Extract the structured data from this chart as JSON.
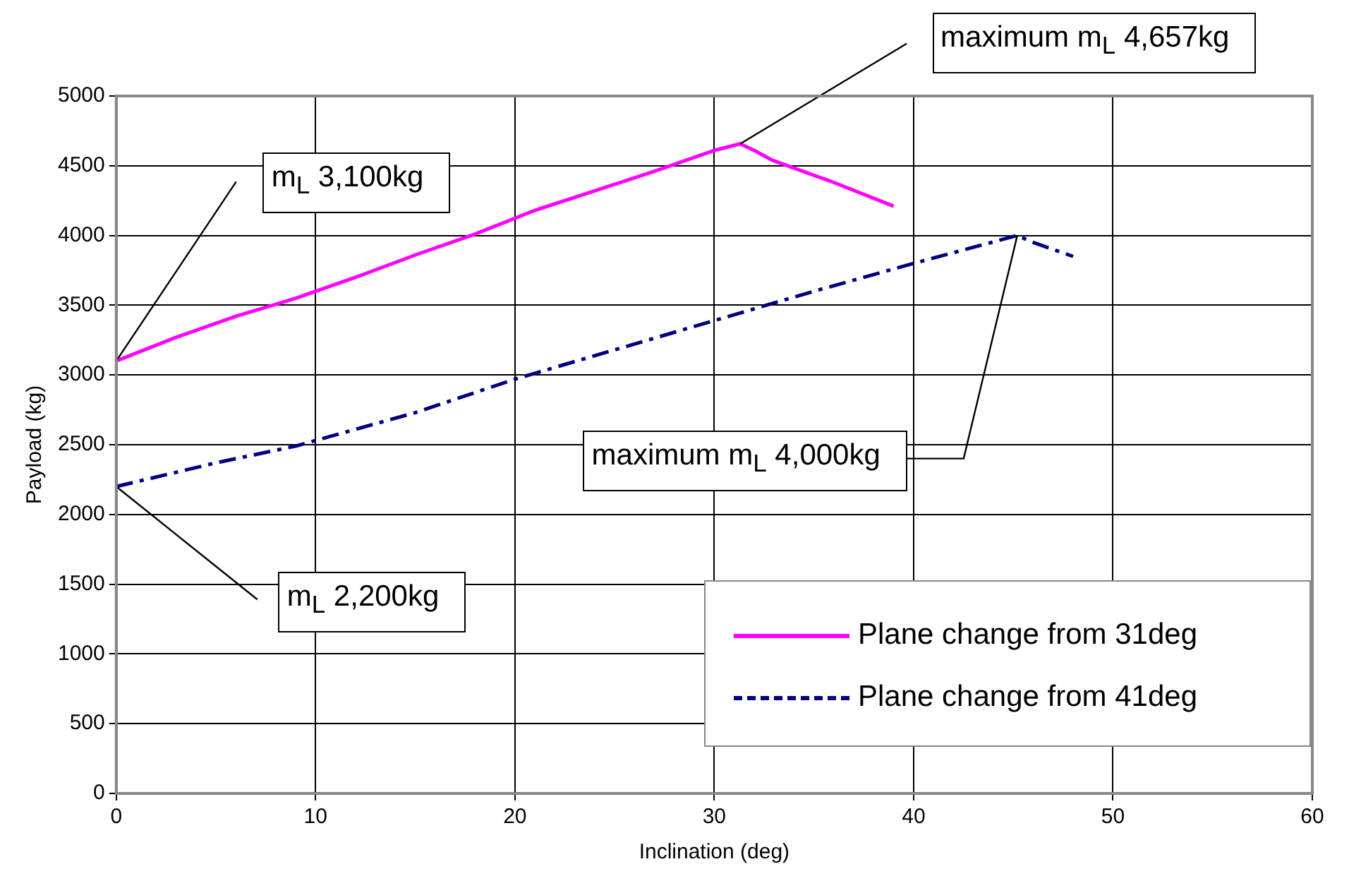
{
  "chart_data": {
    "type": "line",
    "xlabel": "Inclination (deg)",
    "ylabel": "Payload (kg)",
    "xlim": [
      0,
      60
    ],
    "xticks": [
      0,
      10,
      20,
      30,
      40,
      50,
      60
    ],
    "ylim": [
      0,
      5000
    ],
    "yticks": [
      0,
      500,
      1000,
      1500,
      2000,
      2500,
      3000,
      3500,
      4000,
      4500,
      5000
    ],
    "grid": true,
    "legend": "bottom right",
    "marker": "none",
    "series": [
      {
        "name": "Plane change from 31deg",
        "color": "#ff00ff",
        "line_style": "solid",
        "x": [
          0,
          3,
          6,
          9,
          12,
          15,
          18,
          21,
          24,
          27,
          30,
          31.3,
          32,
          32.9,
          36,
          39
        ],
        "values": [
          3100,
          3270,
          3420,
          3550,
          3700,
          3860,
          4010,
          4180,
          4320,
          4460,
          4610,
          4657,
          4610,
          4540,
          4380,
          4210
        ]
      },
      {
        "name": "Plane change from 41deg",
        "color": "#000080",
        "line_style": "dashed",
        "x": [
          0,
          5,
          9,
          15,
          20,
          25,
          30,
          35,
          40,
          45.2,
          46,
          48
        ],
        "values": [
          2200,
          2370,
          2490,
          2730,
          2970,
          3180,
          3390,
          3600,
          3800,
          4000,
          3950,
          3850
        ]
      }
    ],
    "annotations": [
      {
        "text": "m$_{L}$ 3,100kg",
        "x": 0,
        "y": 3100
      },
      {
        "text": "maximum m$_{L}$ 4,657kg",
        "x": 31.3,
        "y": 4657
      },
      {
        "text": "maximum m$_{L}$ 4,000kg",
        "x": 45.2,
        "y": 4000
      },
      {
        "text": "m$_{L}$ 2,200kg",
        "x": 0,
        "y": 2200
      }
    ]
  }
}
